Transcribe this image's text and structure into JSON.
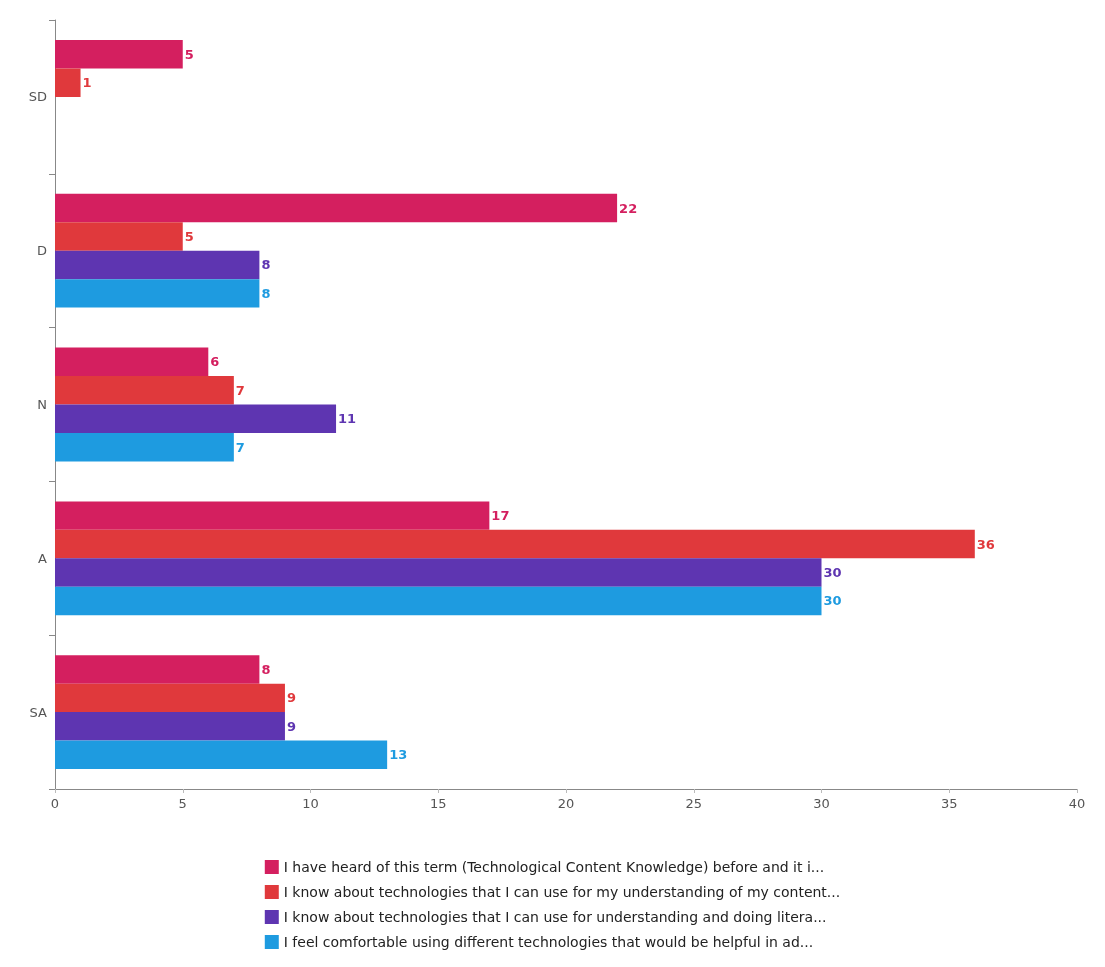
{
  "chart_data": {
    "type": "bar",
    "orientation": "horizontal",
    "categories": [
      "SD",
      "D",
      "N",
      "A",
      "SA"
    ],
    "series": [
      {
        "name": "I have heard of this term (Technological Content Knowledge) before and it i...",
        "color": "#d41f5f",
        "values": [
          5,
          22,
          6,
          17,
          8
        ]
      },
      {
        "name": "I know about technologies that I can use for my understanding of my content...",
        "color": "#e0393c",
        "values": [
          1,
          5,
          7,
          36,
          9
        ]
      },
      {
        "name": "I know about technologies that I can use for understanding and doing litera...",
        "color": "#5e35b1",
        "values": [
          null,
          8,
          11,
          30,
          9
        ]
      },
      {
        "name": "I feel comfortable using different technologies that would be helpful in ad...",
        "color": "#1e9be0",
        "values": [
          null,
          8,
          7,
          30,
          13
        ]
      }
    ],
    "xlim": [
      0,
      40
    ],
    "xticks": [
      0,
      5,
      10,
      15,
      20,
      25,
      30,
      35,
      40
    ],
    "data_labels": true,
    "grid": false,
    "legend": "bottom"
  }
}
